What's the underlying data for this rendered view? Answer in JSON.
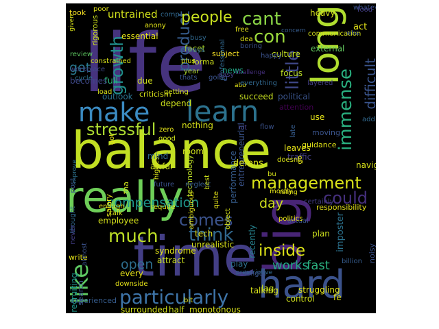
{
  "colors": {
    "background": "#000000",
    "page": "#ffffff"
  },
  "words": [
    {
      "t": "life",
      "c": "#46337e"
    },
    {
      "t": "balance",
      "c": "#c2df23"
    },
    {
      "t": "time",
      "c": "#433e85"
    },
    {
      "t": "really",
      "c": "#6ece58"
    },
    {
      "t": "big",
      "c": "#482576"
    },
    {
      "t": "long",
      "c": "#b0dd2f"
    },
    {
      "t": "hard",
      "c": "#3b528b"
    },
    {
      "t": "learn",
      "c": "#2c728e"
    },
    {
      "t": "make",
      "c": "#3b8bc2"
    },
    {
      "t": "like",
      "c": "#5ec962"
    },
    {
      "t": "management",
      "c": "#d8e219"
    },
    {
      "t": "particularly",
      "c": "#3e74a8"
    },
    {
      "t": "stressful",
      "c": "#addc30"
    },
    {
      "t": "growth",
      "c": "#21908d"
    },
    {
      "t": "product",
      "c": "#365c8d"
    },
    {
      "t": "immense",
      "c": "#29af7f"
    },
    {
      "t": "difficult",
      "c": "#3a548c"
    },
    {
      "t": "little",
      "c": "#3f4889"
    },
    {
      "t": "cant",
      "c": "#8bd646"
    },
    {
      "t": "con",
      "c": "#9bd93c"
    },
    {
      "t": "people",
      "c": "#c8e020"
    },
    {
      "t": "get",
      "c": "#2a788e"
    },
    {
      "t": "much",
      "c": "#bddf26"
    },
    {
      "t": "think",
      "c": "#31688e"
    },
    {
      "t": "comes",
      "c": "#3b528b"
    },
    {
      "t": "could",
      "c": "#46307e"
    },
    {
      "t": "inside",
      "c": "#dde318"
    },
    {
      "t": "day",
      "c": "#d0e11c"
    },
    {
      "t": "open",
      "c": "#2e6e8e"
    },
    {
      "t": "works",
      "c": "#22a785"
    },
    {
      "t": "fast",
      "c": "#2ab07f"
    },
    {
      "t": "compensation",
      "c": "#1f968b"
    },
    {
      "t": "untrained",
      "c": "#d2e21b"
    },
    {
      "t": "took",
      "c": "#fde725"
    },
    {
      "t": "facet",
      "c": "#addc30"
    },
    {
      "t": "heavy",
      "c": "#d5e21a"
    },
    {
      "t": "act",
      "c": "#e5e419"
    },
    {
      "t": "anony",
      "c": "#e2e418"
    },
    {
      "t": "comp",
      "c": "#31688e"
    },
    {
      "t": "essential",
      "c": "#e7e419"
    },
    {
      "t": "culture",
      "c": "#c2df23"
    },
    {
      "t": "external",
      "c": "#63cb5f"
    },
    {
      "t": "review",
      "c": "#5ec962"
    },
    {
      "t": "workplace",
      "c": "#3f4889"
    },
    {
      "t": "subject",
      "c": "#fde725"
    },
    {
      "t": "cycle",
      "c": "#2c728e"
    },
    {
      "t": "year",
      "c": "#addc30"
    },
    {
      "t": "news",
      "c": "#22a785"
    },
    {
      "t": "focus",
      "c": "#bddf26"
    },
    {
      "t": "full",
      "c": "#2fb47c"
    },
    {
      "t": "due",
      "c": "#d0e11c"
    },
    {
      "t": "criticism",
      "c": "#d8e219"
    },
    {
      "t": "succeed",
      "c": "#c8e020"
    },
    {
      "t": "political",
      "c": "#3a548c"
    },
    {
      "t": "attention",
      "c": "#440154"
    },
    {
      "t": "abo",
      "c": "#e2e418"
    },
    {
      "t": "depend",
      "c": "#cde11d"
    },
    {
      "t": "use",
      "c": "#e5e419"
    },
    {
      "t": "entrepreneurial",
      "c": "#3a548c"
    },
    {
      "t": "nothing",
      "c": "#d8e219"
    },
    {
      "t": "room",
      "c": "#d0e11c"
    },
    {
      "t": "technology",
      "c": "#bddf26"
    },
    {
      "t": "performance",
      "c": "#365c8d"
    },
    {
      "t": "leaves",
      "c": "#e7e419"
    },
    {
      "t": "traffic",
      "c": "#433e85"
    },
    {
      "t": "awful",
      "c": "#cde11d"
    },
    {
      "t": "mind",
      "c": "#31688e"
    },
    {
      "t": "defens",
      "c": "#d8e219"
    },
    {
      "t": "rating",
      "c": "#e2e418"
    },
    {
      "t": "employee",
      "c": "#d5e21a"
    },
    {
      "t": "tech",
      "c": "#e5e419"
    },
    {
      "t": "recently",
      "c": "#26828e"
    },
    {
      "t": "imposter",
      "c": "#2c728e"
    },
    {
      "t": "syndrome",
      "c": "#e2e418"
    },
    {
      "t": "unrealistic",
      "c": "#d8e219"
    },
    {
      "t": "attract",
      "c": "#cde11d"
    },
    {
      "t": "write",
      "c": "#e5e419"
    },
    {
      "t": "every",
      "c": "#e7e419"
    },
    {
      "t": "recruiting",
      "c": "#1f968b"
    },
    {
      "t": "talking",
      "c": "#d8e219"
    },
    {
      "t": "struggling",
      "c": "#e2e418"
    },
    {
      "t": "surrounded",
      "c": "#d5e21a"
    },
    {
      "t": "half",
      "c": "#cde11d"
    },
    {
      "t": "monotonous",
      "c": "#d8e219"
    },
    {
      "t": "control",
      "c": "#d0e11c"
    },
    {
      "t": "fe",
      "c": "#e7e419"
    },
    {
      "t": "lag",
      "c": "#c8e020"
    },
    {
      "t": "play",
      "c": "#2e6e8e"
    },
    {
      "t": "plan",
      "c": "#cde11d"
    },
    {
      "t": "responsibility",
      "c": "#e5e419"
    },
    {
      "t": "guidance",
      "c": "#e2e418"
    },
    {
      "t": "navigate",
      "c": "#d8e219"
    },
    {
      "t": "moving",
      "c": "#3a548c"
    },
    {
      "t": "add",
      "c": "#31688e"
    },
    {
      "t": "happy",
      "c": "#3b528b"
    },
    {
      "t": "challenge",
      "c": "#46307e"
    },
    {
      "t": "everything",
      "c": "#31688e"
    },
    {
      "t": "getting",
      "c": "#d5e21a"
    },
    {
      "t": "outlook",
      "c": "#2c728e"
    },
    {
      "t": "becomes",
      "c": "#3f4889"
    },
    {
      "t": "load",
      "c": "#d8e219"
    },
    {
      "t": "salary",
      "c": "#e5e419"
    },
    {
      "t": "enough",
      "c": "#e2e418"
    },
    {
      "t": "post",
      "c": "#3a548c"
    },
    {
      "t": "thought",
      "c": "#31688e"
    },
    {
      "t": "never",
      "c": "#433e85"
    },
    {
      "t": "almost",
      "c": "#3b528b"
    },
    {
      "t": "experienced",
      "c": "#365c8d"
    },
    {
      "t": "search",
      "c": "#3a548c"
    },
    {
      "t": "downside",
      "c": "#e7e419"
    },
    {
      "t": "poor",
      "c": "#e2e418"
    },
    {
      "t": "given",
      "c": "#d8e219"
    },
    {
      "t": "rigorous",
      "c": "#cde11d"
    },
    {
      "t": "whatever",
      "c": "#3a548c"
    },
    {
      "t": "food",
      "c": "#433e85"
    },
    {
      "t": "communication",
      "c": "#d5e21a"
    },
    {
      "t": "free",
      "c": "#e5e419"
    },
    {
      "t": "dea",
      "c": "#e2e418"
    },
    {
      "t": "boring",
      "c": "#3b528b"
    },
    {
      "t": "always",
      "c": "#31688e"
    },
    {
      "t": "plus",
      "c": "#d8e219"
    },
    {
      "t": "thats",
      "c": "#3a548c"
    },
    {
      "t": "forma",
      "c": "#cde11d"
    },
    {
      "t": "layered",
      "c": "#433e85"
    },
    {
      "t": "future",
      "c": "#3b528b"
    },
    {
      "t": "require",
      "c": "#e2e418"
    },
    {
      "t": "neglect",
      "c": "#365c8d"
    },
    {
      "t": "zero",
      "c": "#e5e419"
    },
    {
      "t": "good",
      "c": "#cde11d"
    },
    {
      "t": "highest",
      "c": "#d8e219"
    },
    {
      "t": "improve",
      "c": "#2c728e"
    },
    {
      "t": "professional",
      "c": "#31688e"
    },
    {
      "t": "ambiguous",
      "c": "#e2e418"
    },
    {
      "t": "object",
      "c": "#d5e21a"
    },
    {
      "t": "quite",
      "c": "#e7e419"
    },
    {
      "t": "best",
      "c": "#cde11d"
    },
    {
      "t": "doesnt",
      "c": "#d8e219"
    },
    {
      "t": "go",
      "c": "#e5e419"
    },
    {
      "t": "actual",
      "c": "#3a548c"
    },
    {
      "t": "certainly",
      "c": "#433e85"
    },
    {
      "t": "noisy",
      "c": "#3b528b"
    },
    {
      "t": "billion",
      "c": "#365c8d"
    },
    {
      "t": "prescriptive",
      "c": "#31688e"
    },
    {
      "t": "length",
      "c": "#3a548c"
    },
    {
      "t": "bit",
      "c": "#e2e418"
    },
    {
      "t": "talk",
      "c": "#d8e219"
    },
    {
      "t": "tha",
      "c": "#cde11d"
    },
    {
      "t": "mostly",
      "c": "#e5e419"
    },
    {
      "t": "politics",
      "c": "#e7e419"
    },
    {
      "t": "bu",
      "c": "#d5e21a"
    },
    {
      "t": "hit",
      "c": "#433e85"
    },
    {
      "t": "flow",
      "c": "#3b528b"
    },
    {
      "t": "late",
      "c": "#365c8d"
    },
    {
      "t": "got",
      "c": "#e2e418"
    },
    {
      "t": "busy",
      "c": "#31688e"
    },
    {
      "t": "going",
      "c": "#3a548c"
    },
    {
      "t": "constrained",
      "c": "#d8e219"
    },
    {
      "t": "easy",
      "c": "#433e85"
    },
    {
      "t": "concern",
      "c": "#365c8d"
    },
    {
      "t": "whe",
      "c": "#3b528b"
    },
    {
      "t": "balanc",
      "c": "#e2e418"
    },
    {
      "t": "may",
      "c": "#cde11d"
    },
    {
      "t": "expect",
      "c": "#3a548c"
    }
  ]
}
